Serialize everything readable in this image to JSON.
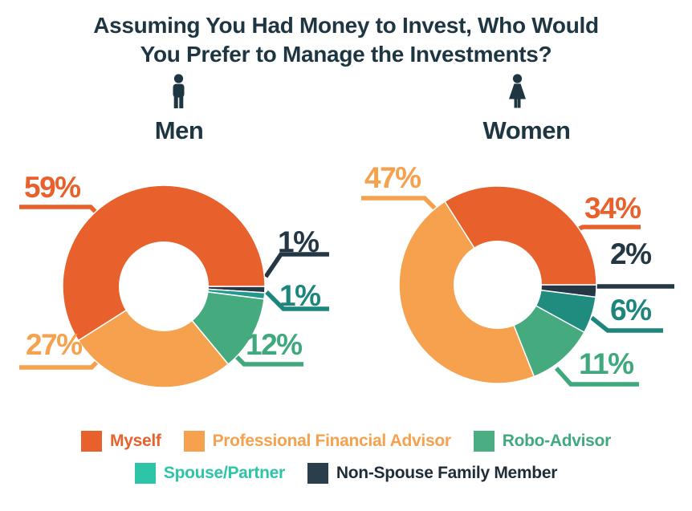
{
  "title": {
    "line1": "Assuming You Had Money to Invest, Who Would",
    "line2": "You Prefer to Manage the Investments?"
  },
  "colors": {
    "title_text": "#1e3642",
    "icon": "#1e3642",
    "background": "#ffffff",
    "myself": "#e8612c",
    "professional_financial_advisor": "#f5a14d",
    "robo_advisor": "#45aa7e",
    "spouse_partner_slice": "#21948a",
    "spouse_partner_legend": "#2ec4a7",
    "non_spouse": "#243845"
  },
  "chart_data": [
    {
      "type": "donut",
      "title": "Men",
      "icon": "man-icon",
      "start_angle_deg": 0,
      "direction": "clockwise",
      "total": 100,
      "slices": [
        {
          "label": "Non-Spouse Family Member",
          "value": 1,
          "display": "1%",
          "color": "#243845",
          "label_color": "#233744"
        },
        {
          "label": "Spouse/Partner",
          "value": 1,
          "display": "1%",
          "color": "#23988b",
          "label_color": "#1d867c"
        },
        {
          "label": "Robo-Advisor",
          "value": 12,
          "display": "12%",
          "color": "#45aa7e",
          "label_color": "#3fa87c"
        },
        {
          "label": "Professional Financial Advisor",
          "value": 27,
          "display": "27%",
          "color": "#f5a14d",
          "label_color": "#f5a14d"
        },
        {
          "label": "Myself",
          "value": 59,
          "display": "59%",
          "color": "#e8612c",
          "label_color": "#e8612c"
        }
      ]
    },
    {
      "type": "donut",
      "title": "Women",
      "icon": "woman-icon",
      "start_angle_deg": 0,
      "direction": "clockwise",
      "total": 100,
      "slices": [
        {
          "label": "Non-Spouse Family Member",
          "value": 2,
          "display": "2%",
          "color": "#243845",
          "label_color": "#233744"
        },
        {
          "label": "Spouse/Partner",
          "value": 6,
          "display": "6%",
          "color": "#1f8c7f",
          "label_color": "#1d867c"
        },
        {
          "label": "Robo-Advisor",
          "value": 11,
          "display": "11%",
          "color": "#45aa7e",
          "label_color": "#3fa87c"
        },
        {
          "label": "Professional Financial Advisor",
          "value": 47,
          "display": "47%",
          "color": "#f5a14d",
          "label_color": "#f5a14d"
        },
        {
          "label": "Myself",
          "value": 34,
          "display": "34%",
          "color": "#e8612c",
          "label_color": "#e8612c"
        }
      ]
    }
  ],
  "legend": {
    "items": [
      {
        "label": "Myself",
        "color": "#e8612c",
        "text_color": "#e8612c"
      },
      {
        "label": "Professional Financial Advisor",
        "color": "#f5a14d",
        "text_color": "#f5a14d"
      },
      {
        "label": "Robo-Advisor",
        "color": "#4aad83",
        "text_color": "#42a97e"
      },
      {
        "label": "Spouse/Partner",
        "color": "#2ec4a7",
        "text_color": "#2ec4a7"
      },
      {
        "label": "Non-Spouse Family Member",
        "color": "#2a3e4c",
        "text_color": "#1f2d38"
      }
    ]
  }
}
